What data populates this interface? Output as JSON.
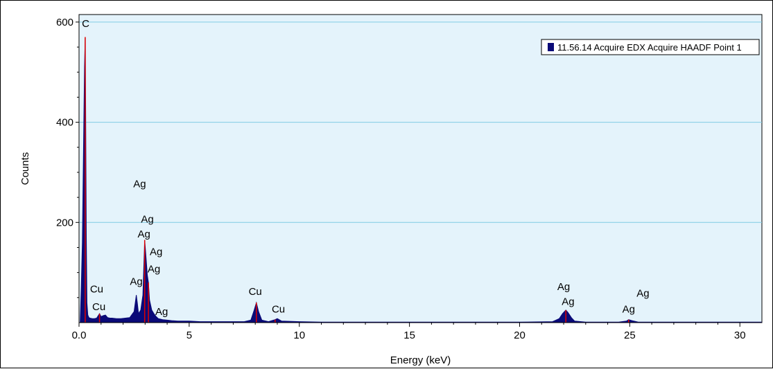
{
  "chart_data": {
    "type": "line",
    "title": "",
    "xlabel": "Energy (keV)",
    "ylabel": "Counts",
    "xlim": [
      0,
      31
    ],
    "ylim": [
      0,
      615
    ],
    "x_ticks": [
      0,
      5,
      10,
      15,
      20,
      25,
      30
    ],
    "x_tick_labels": [
      "0.0",
      "5",
      "10",
      "15",
      "20",
      "25",
      "30"
    ],
    "y_ticks": [
      200,
      400,
      600
    ],
    "y_tick_labels": [
      "200",
      "400",
      "600"
    ],
    "grid": "horizontal",
    "legend": "top-right",
    "colors": {
      "plot_bg": "#e4f3fb",
      "grid": "#7fcbe3",
      "spectrum": "#0a0a78",
      "marker": "#e00000"
    },
    "series": [
      {
        "name": "11.56.14 Acquire EDX Acquire HAADF Point 1",
        "x": [
          0.05,
          0.1,
          0.15,
          0.2,
          0.25,
          0.28,
          0.3,
          0.33,
          0.36,
          0.4,
          0.45,
          0.5,
          0.6,
          0.7,
          0.8,
          0.93,
          1.0,
          1.1,
          1.2,
          1.3,
          1.4,
          1.5,
          1.7,
          1.9,
          2.1,
          2.3,
          2.5,
          2.6,
          2.65,
          2.7,
          2.8,
          2.9,
          2.98,
          3.05,
          3.1,
          3.15,
          3.2,
          3.3,
          3.4,
          3.5,
          3.6,
          3.8,
          4.0,
          4.2,
          4.5,
          5.0,
          5.5,
          6.0,
          6.5,
          7.0,
          7.5,
          7.8,
          7.95,
          8.05,
          8.15,
          8.3,
          8.6,
          8.9,
          9.0,
          9.2,
          10.0,
          11.0,
          12.0,
          13.0,
          15.0,
          18.0,
          20.0,
          21.5,
          21.8,
          21.95,
          22.1,
          22.2,
          22.35,
          22.5,
          23.0,
          24.5,
          24.85,
          24.95,
          25.1,
          25.4,
          27.0,
          31.0
        ],
        "y": [
          0,
          70,
          160,
          340,
          510,
          570,
          440,
          170,
          40,
          15,
          10,
          9,
          8,
          8,
          9,
          18,
          12,
          14,
          15,
          10,
          9,
          9,
          8,
          8,
          9,
          10,
          22,
          55,
          38,
          18,
          25,
          55,
          165,
          125,
          95,
          80,
          45,
          25,
          18,
          12,
          8,
          6,
          5,
          4,
          3,
          3,
          2,
          2,
          2,
          2,
          2,
          5,
          25,
          40,
          22,
          5,
          2,
          6,
          8,
          3,
          2,
          1,
          1,
          1,
          1,
          1,
          1,
          2,
          8,
          18,
          25,
          20,
          10,
          3,
          1,
          1,
          3,
          6,
          4,
          1,
          1,
          1
        ]
      }
    ],
    "markers": [
      {
        "x": 0.28,
        "y": 570
      },
      {
        "x": 0.93,
        "y": 18
      },
      {
        "x": 2.98,
        "y": 165
      },
      {
        "x": 3.15,
        "y": 80
      },
      {
        "x": 8.05,
        "y": 40
      },
      {
        "x": 8.9,
        "y": 6
      },
      {
        "x": 22.1,
        "y": 25
      },
      {
        "x": 24.95,
        "y": 6
      }
    ],
    "annotations": [
      {
        "text": "C",
        "x": 0.3,
        "y": 590
      },
      {
        "text": "Cu",
        "x": 0.8,
        "y": 60
      },
      {
        "text": "Cu",
        "x": 0.9,
        "y": 25
      },
      {
        "text": "Ag",
        "x": 2.75,
        "y": 270
      },
      {
        "text": "Ag",
        "x": 3.1,
        "y": 200
      },
      {
        "text": "Ag",
        "x": 2.95,
        "y": 170
      },
      {
        "text": "Ag",
        "x": 3.5,
        "y": 135
      },
      {
        "text": "Ag",
        "x": 3.4,
        "y": 100
      },
      {
        "text": "Ag",
        "x": 2.6,
        "y": 75
      },
      {
        "text": "Ag",
        "x": 3.75,
        "y": 15
      },
      {
        "text": "Cu",
        "x": 8.0,
        "y": 55
      },
      {
        "text": "Cu",
        "x": 9.05,
        "y": 20
      },
      {
        "text": "Ag",
        "x": 22.0,
        "y": 65
      },
      {
        "text": "Ag",
        "x": 22.2,
        "y": 35
      },
      {
        "text": "Ag",
        "x": 25.6,
        "y": 52
      },
      {
        "text": "Ag",
        "x": 24.95,
        "y": 20
      }
    ]
  }
}
